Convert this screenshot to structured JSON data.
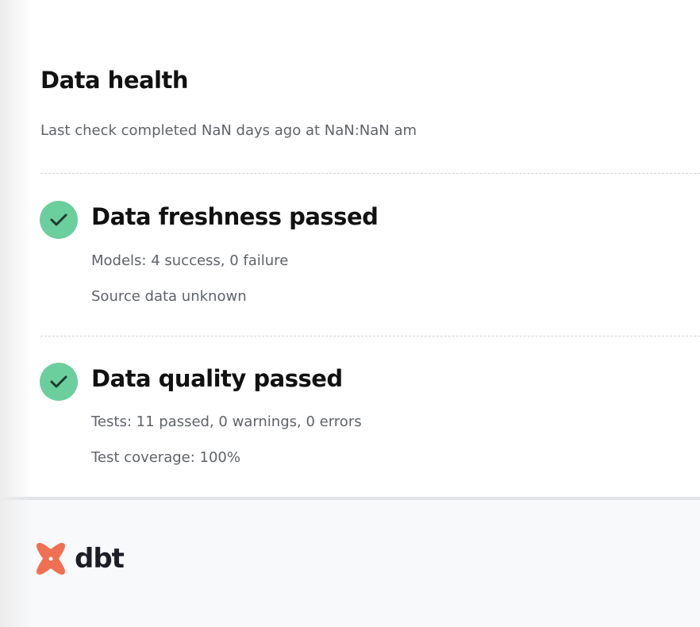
{
  "header": {
    "title": "Data health",
    "subtitle": "Last check completed NaN days ago at NaN:NaN am"
  },
  "sections": [
    {
      "title": "Data freshness passed",
      "status": "passed",
      "icon": "check-circle-icon",
      "details": [
        "Models: 4 success, 0 failure",
        "Source data unknown"
      ]
    },
    {
      "title": "Data quality passed",
      "status": "passed",
      "icon": "check-circle-icon",
      "details": [
        "Tests: 11 passed, 0 warnings, 0 errors",
        "Test coverage: 100%"
      ]
    }
  ],
  "footer": {
    "logo_text": "dbt"
  },
  "colors": {
    "success": "#6bcf9d",
    "brand": "#ef7052"
  }
}
